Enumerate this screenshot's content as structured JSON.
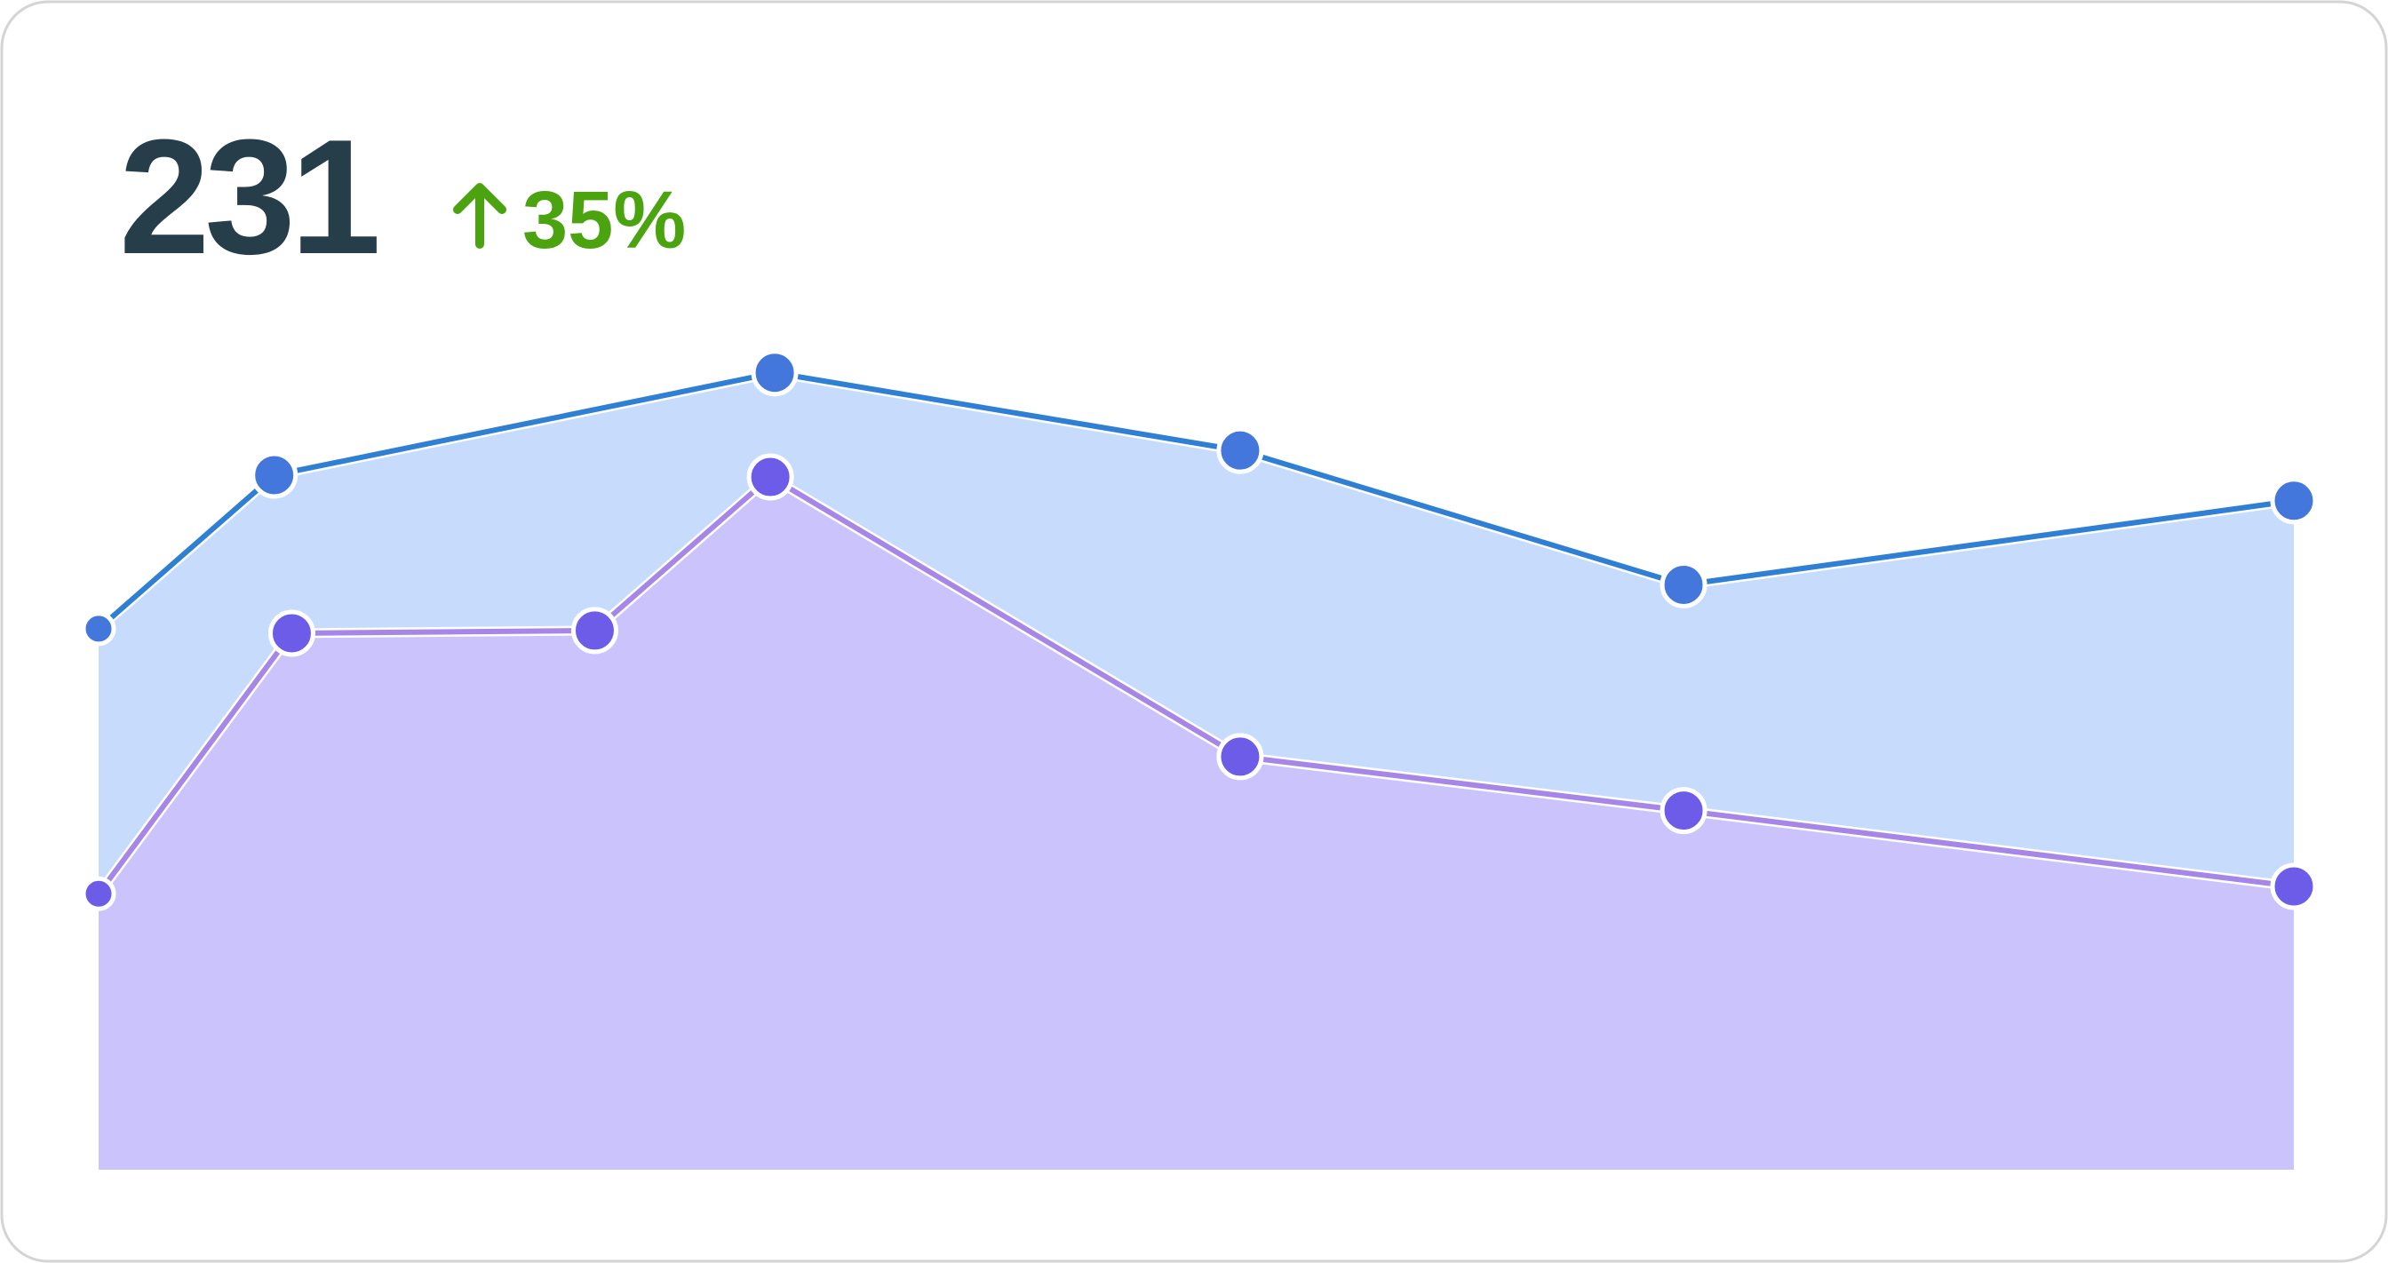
{
  "metric": {
    "value": "231",
    "change": "35%"
  },
  "chart_data": {
    "type": "area",
    "xlim": [
      0,
      100
    ],
    "ylim": [
      0,
      100
    ],
    "series": [
      {
        "color": "#4377dc",
        "line_color": "#2f80d4",
        "fill": "#c7dcfc",
        "x": [
          0,
          8,
          30.8,
          52,
          72.2,
          100
        ],
        "values": [
          59.2,
          76,
          87.2,
          78.7,
          64,
          73.2
        ]
      },
      {
        "color": "#6c5ce7",
        "line_color": "#a687e8",
        "fill": "#cbc4fc",
        "x": [
          0,
          8.8,
          22.6,
          30.6,
          52,
          72.2,
          100
        ],
        "values": [
          30.2,
          58.7,
          59,
          75.8,
          45.2,
          39.3,
          31
        ]
      }
    ]
  }
}
